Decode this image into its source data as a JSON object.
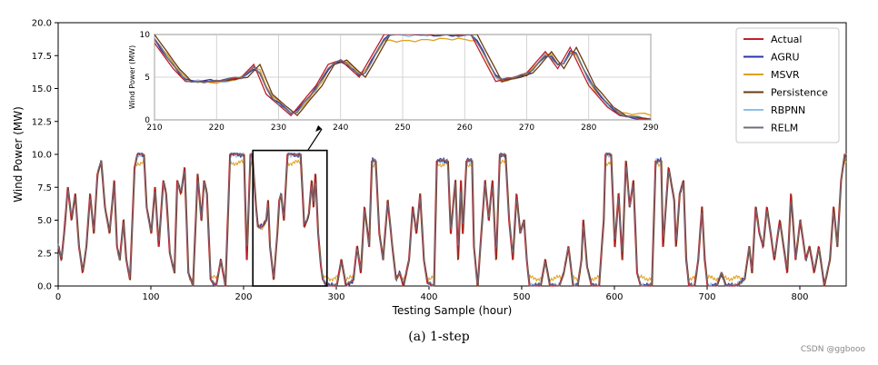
{
  "chart_data": {
    "type": "line",
    "xlabel": "Testing Sample (hour)",
    "ylabel": "Wind Power (MW)",
    "xlim": [
      0,
      850
    ],
    "ylim": [
      0,
      20
    ],
    "x_ticks": [
      "0",
      "100",
      "200",
      "300",
      "400",
      "500",
      "600",
      "700",
      "800"
    ],
    "y_ticks": [
      "0.0",
      "2.5",
      "5.0",
      "7.5",
      "10.0",
      "12.5",
      "15.0",
      "17.5",
      "20.0"
    ],
    "legend_position": "top-right",
    "series": [
      {
        "name": "Actual",
        "color": "#c0202a"
      },
      {
        "name": "AGRU",
        "color": "#2a35a8"
      },
      {
        "name": "MSVR",
        "color": "#e0a020"
      },
      {
        "name": "Persistence",
        "color": "#6b3a10"
      },
      {
        "name": "RBPNN",
        "color": "#8ec0e8"
      },
      {
        "name": "RELM",
        "color": "#6e6e80"
      }
    ],
    "actual_segments": [
      [
        0,
        3
      ],
      [
        3,
        2
      ],
      [
        6,
        4
      ],
      [
        10,
        7.5
      ],
      [
        14,
        5
      ],
      [
        18,
        7
      ],
      [
        22,
        3
      ],
      [
        26,
        1
      ],
      [
        30,
        3
      ],
      [
        34,
        7
      ],
      [
        38,
        4
      ],
      [
        42,
        8.5
      ],
      [
        46,
        9.5
      ],
      [
        50,
        6
      ],
      [
        55,
        4
      ],
      [
        60,
        8
      ],
      [
        63,
        3
      ],
      [
        66,
        2
      ],
      [
        70,
        5
      ],
      [
        73,
        2
      ],
      [
        77,
        0.5
      ],
      [
        82,
        9
      ],
      [
        85,
        10
      ],
      [
        92,
        10
      ],
      [
        95,
        6
      ],
      [
        100,
        4
      ],
      [
        104,
        7.5
      ],
      [
        108,
        3
      ],
      [
        113,
        8
      ],
      [
        116,
        7
      ],
      [
        120,
        2.5
      ],
      [
        125,
        1
      ],
      [
        128,
        8
      ],
      [
        132,
        7
      ],
      [
        136,
        9
      ],
      [
        140,
        1
      ],
      [
        145,
        0
      ],
      [
        150,
        8.5
      ],
      [
        154,
        5
      ],
      [
        157,
        8
      ],
      [
        160,
        7
      ],
      [
        164,
        0.5
      ],
      [
        170,
        0
      ],
      [
        175,
        2
      ],
      [
        180,
        0
      ],
      [
        185,
        10
      ],
      [
        200,
        10
      ],
      [
        203,
        2
      ],
      [
        207,
        10
      ],
      [
        209,
        10
      ],
      [
        213,
        6
      ],
      [
        215,
        4.5
      ],
      [
        220,
        4.5
      ],
      [
        224,
        5
      ],
      [
        226,
        6.5
      ],
      [
        228,
        3
      ],
      [
        232,
        0.5
      ],
      [
        236,
        4
      ],
      [
        238,
        6.5
      ],
      [
        240,
        7
      ],
      [
        243,
        5
      ],
      [
        247,
        10
      ],
      [
        258,
        10
      ],
      [
        261,
        10
      ],
      [
        265,
        4.5
      ],
      [
        268,
        5
      ],
      [
        270,
        5.5
      ],
      [
        273,
        8
      ],
      [
        275,
        6
      ],
      [
        277,
        8.5
      ],
      [
        280,
        4
      ],
      [
        283,
        1.5
      ],
      [
        285,
        0.5
      ],
      [
        290,
        0
      ],
      [
        300,
        0
      ],
      [
        305,
        2
      ],
      [
        310,
        0
      ],
      [
        318,
        0.5
      ],
      [
        322,
        3
      ],
      [
        326,
        1
      ],
      [
        330,
        6
      ],
      [
        335,
        3
      ],
      [
        338,
        9.5
      ],
      [
        342,
        9.5
      ],
      [
        346,
        4
      ],
      [
        350,
        2
      ],
      [
        355,
        6.5
      ],
      [
        360,
        3
      ],
      [
        364,
        0.5
      ],
      [
        368,
        1
      ],
      [
        372,
        0
      ],
      [
        378,
        2
      ],
      [
        382,
        6
      ],
      [
        386,
        4
      ],
      [
        390,
        7
      ],
      [
        394,
        2
      ],
      [
        398,
        0.2
      ],
      [
        405,
        0
      ],
      [
        408,
        9.5
      ],
      [
        420,
        9.5
      ],
      [
        423,
        4
      ],
      [
        428,
        8
      ],
      [
        431,
        2
      ],
      [
        434,
        8
      ],
      [
        436,
        4
      ],
      [
        440,
        9.5
      ],
      [
        446,
        9.5
      ],
      [
        448,
        3
      ],
      [
        452,
        0
      ],
      [
        460,
        8
      ],
      [
        464,
        5
      ],
      [
        468,
        8
      ],
      [
        472,
        2
      ],
      [
        476,
        10
      ],
      [
        482,
        10
      ],
      [
        486,
        5
      ],
      [
        490,
        2
      ],
      [
        494,
        7
      ],
      [
        498,
        4
      ],
      [
        502,
        5
      ],
      [
        505,
        2
      ],
      [
        508,
        0
      ],
      [
        520,
        0
      ],
      [
        525,
        2
      ],
      [
        530,
        0
      ],
      [
        540,
        0
      ],
      [
        545,
        1
      ],
      [
        550,
        3
      ],
      [
        555,
        0
      ],
      [
        560,
        0
      ],
      [
        564,
        2
      ],
      [
        566,
        5
      ],
      [
        570,
        1.5
      ],
      [
        575,
        0
      ],
      [
        583,
        0
      ],
      [
        588,
        5
      ],
      [
        590,
        10
      ],
      [
        596,
        10
      ],
      [
        600,
        3
      ],
      [
        604,
        7
      ],
      [
        608,
        2
      ],
      [
        612,
        9.5
      ],
      [
        616,
        6
      ],
      [
        620,
        8
      ],
      [
        624,
        1
      ],
      [
        628,
        0
      ],
      [
        640,
        0
      ],
      [
        644,
        9.5
      ],
      [
        650,
        9.5
      ],
      [
        652,
        3
      ],
      [
        658,
        9
      ],
      [
        664,
        6.5
      ],
      [
        666,
        3
      ],
      [
        670,
        7
      ],
      [
        674,
        8
      ],
      [
        677,
        2
      ],
      [
        680,
        0
      ],
      [
        686,
        0
      ],
      [
        690,
        2
      ],
      [
        694,
        6
      ],
      [
        697,
        2
      ],
      [
        700,
        0
      ],
      [
        710,
        0
      ],
      [
        715,
        1
      ],
      [
        720,
        0
      ],
      [
        730,
        0
      ],
      [
        740,
        0.5
      ],
      [
        745,
        3
      ],
      [
        748,
        1
      ],
      [
        752,
        6
      ],
      [
        756,
        4
      ],
      [
        760,
        3
      ],
      [
        764,
        6
      ],
      [
        768,
        4
      ],
      [
        772,
        2
      ],
      [
        778,
        5
      ],
      [
        782,
        3
      ],
      [
        786,
        1
      ],
      [
        790,
        7
      ],
      [
        795,
        2
      ],
      [
        800,
        5
      ],
      [
        806,
        2
      ],
      [
        810,
        3
      ],
      [
        815,
        1
      ],
      [
        820,
        3
      ],
      [
        826,
        0
      ],
      [
        832,
        2
      ],
      [
        836,
        6
      ],
      [
        840,
        3
      ],
      [
        844,
        8
      ],
      [
        848,
        10
      ],
      [
        850,
        10
      ]
    ],
    "inset": {
      "xlim": [
        210,
        290
      ],
      "ylim": [
        0,
        10
      ],
      "x_ticks": [
        "210",
        "220",
        "230",
        "240",
        "250",
        "260",
        "270",
        "280",
        "290"
      ],
      "y_ticks": [
        "0",
        "5",
        "10"
      ],
      "ylabel": "Wind Power (MW)"
    },
    "zoom_box_xlim": [
      210,
      290
    ],
    "zoom_box_ylim": [
      0,
      10.3
    ]
  },
  "caption": "(a) 1-step",
  "watermark": "CSDN @ggbooo"
}
